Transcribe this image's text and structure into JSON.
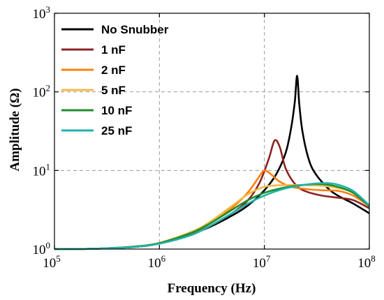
{
  "chart_data": {
    "type": "line",
    "title": "",
    "xlabel": "Frequency (Hz)",
    "ylabel": "Amplitude (Ω)",
    "xscale": "log",
    "yscale": "log",
    "xlim": [
      100000,
      100000000
    ],
    "ylim": [
      1,
      1000
    ],
    "grid": "dashed",
    "legend_position": "top-left",
    "xticks": [
      {
        "value": 100000,
        "base": "10",
        "exp": "5"
      },
      {
        "value": 1000000,
        "base": "10",
        "exp": "6"
      },
      {
        "value": 10000000,
        "base": "10",
        "exp": "7"
      },
      {
        "value": 100000000,
        "base": "10",
        "exp": "8"
      }
    ],
    "yticks": [
      {
        "value": 1,
        "base": "10",
        "exp": "0"
      },
      {
        "value": 10,
        "base": "10",
        "exp": "1"
      },
      {
        "value": 100,
        "base": "10",
        "exp": "2"
      },
      {
        "value": 1000,
        "base": "10",
        "exp": "3"
      }
    ],
    "series": [
      {
        "name": "No Snubber",
        "color": "#000000",
        "x": [
          100000,
          150000,
          300000,
          600000,
          1000000,
          2000000,
          3000000,
          5000000,
          7000000,
          10000000,
          13000000,
          16000000,
          18000000,
          19500000,
          20500000,
          21500000,
          23000000,
          26000000,
          30000000,
          40000000,
          50000000,
          70000000,
          100000000
        ],
        "y": [
          1.0,
          1.0,
          1.02,
          1.07,
          1.18,
          1.55,
          1.9,
          2.7,
          3.6,
          5.6,
          9.0,
          17.0,
          35.0,
          75.0,
          160.0,
          70.0,
          32.0,
          15.0,
          9.5,
          6.0,
          4.8,
          3.8,
          2.85
        ]
      },
      {
        "name": "1 nF",
        "color": "#8B2323",
        "x": [
          100000,
          150000,
          300000,
          600000,
          1000000,
          2000000,
          3000000,
          5000000,
          7000000,
          9000000,
          11000000,
          12500000,
          14000000,
          16000000,
          20000000,
          25000000,
          35000000,
          50000000,
          70000000,
          100000000
        ],
        "y": [
          1.0,
          1.0,
          1.02,
          1.07,
          1.18,
          1.55,
          1.95,
          2.9,
          4.2,
          7.0,
          14.0,
          24.0,
          20.0,
          10.5,
          6.5,
          5.4,
          4.8,
          4.5,
          4.2,
          3.3
        ]
      },
      {
        "name": "2 nF",
        "color": "#FF7F0E",
        "x": [
          100000,
          150000,
          300000,
          600000,
          1000000,
          2000000,
          3000000,
          5000000,
          7000000,
          9000000,
          10000000,
          11500000,
          14000000,
          18000000,
          25000000,
          35000000,
          50000000,
          70000000,
          100000000
        ],
        "y": [
          1.0,
          1.0,
          1.02,
          1.08,
          1.2,
          1.6,
          2.1,
          3.4,
          5.3,
          8.5,
          10.0,
          9.0,
          7.2,
          6.2,
          5.8,
          5.6,
          5.5,
          4.8,
          3.5
        ]
      },
      {
        "name": "5 nF",
        "color": "#F4B942",
        "x": [
          100000,
          150000,
          300000,
          600000,
          1000000,
          2000000,
          3000000,
          5000000,
          7000000,
          10000000,
          15000000,
          25000000,
          35000000,
          50000000,
          70000000,
          100000000
        ],
        "y": [
          1.0,
          1.0,
          1.02,
          1.08,
          1.2,
          1.65,
          2.2,
          3.6,
          5.0,
          6.2,
          6.5,
          6.5,
          6.4,
          6.0,
          5.2,
          3.5
        ]
      },
      {
        "name": "10 nF",
        "color": "#1E8C2E",
        "x": [
          100000,
          150000,
          300000,
          600000,
          1000000,
          2000000,
          3000000,
          5000000,
          7000000,
          10000000,
          15000000,
          20000000,
          30000000,
          40000000,
          50000000,
          70000000,
          100000000
        ],
        "y": [
          1.0,
          1.0,
          1.02,
          1.08,
          1.19,
          1.6,
          2.1,
          3.2,
          4.2,
          5.2,
          6.0,
          6.4,
          6.7,
          6.6,
          6.2,
          5.2,
          3.5
        ]
      },
      {
        "name": "25 nF",
        "color": "#20B2AA",
        "x": [
          100000,
          150000,
          300000,
          600000,
          1000000,
          2000000,
          3000000,
          5000000,
          7000000,
          10000000,
          15000000,
          20000000,
          30000000,
          40000000,
          50000000,
          70000000,
          100000000
        ],
        "y": [
          1.0,
          1.0,
          1.02,
          1.07,
          1.17,
          1.5,
          1.95,
          2.9,
          3.8,
          4.8,
          5.8,
          6.3,
          6.8,
          6.9,
          6.6,
          5.5,
          3.6
        ]
      }
    ]
  }
}
